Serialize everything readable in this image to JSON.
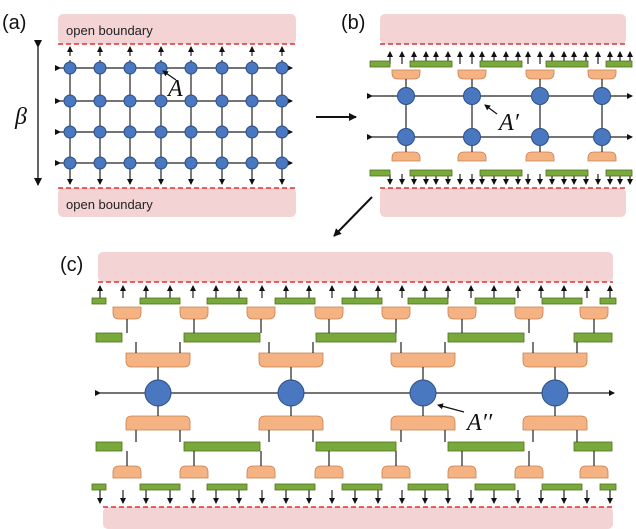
{
  "panels": {
    "a": {
      "label": "(a)",
      "boundary_top": "open boundary",
      "boundary_bottom": "open boundary",
      "beta": "β",
      "tensor": "A"
    },
    "b": {
      "label": "(b)",
      "tensor": "A′"
    },
    "c": {
      "label": "(c)",
      "tensor": "A′′"
    }
  },
  "colors": {
    "node": "#4a78c0",
    "node_stroke": "#2c4f86",
    "boundary_fill": "#f3d3d3",
    "boundary_dash": "#e03030",
    "isometry": "#f5b283",
    "isometry_stroke": "#c9804e",
    "disentangler": "#79a83b",
    "disentangler_stroke": "#4e7020"
  },
  "icons": {
    "transform_arrows": "arrow-icon"
  }
}
